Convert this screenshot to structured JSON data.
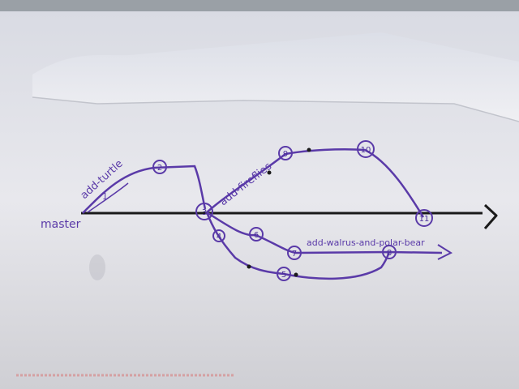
{
  "branches": {
    "master": "master",
    "turtle": "add-turtle",
    "fireflies": "add-fireflies",
    "walrus": "add-walrus-and-polar-bear"
  },
  "annotations": {
    "turtle_line_number": "1"
  },
  "nodes": {
    "n2": "2",
    "n3": "3",
    "n4": "4",
    "n5": "5",
    "n6": "6",
    "n7": "7",
    "n8": "8",
    "n9": "9",
    "n10": "10",
    "n11": "11"
  },
  "colors": {
    "ink_purple": "#5a3aa8",
    "ink_black": "#1a1a1a",
    "paper": "#e9e9ee"
  }
}
